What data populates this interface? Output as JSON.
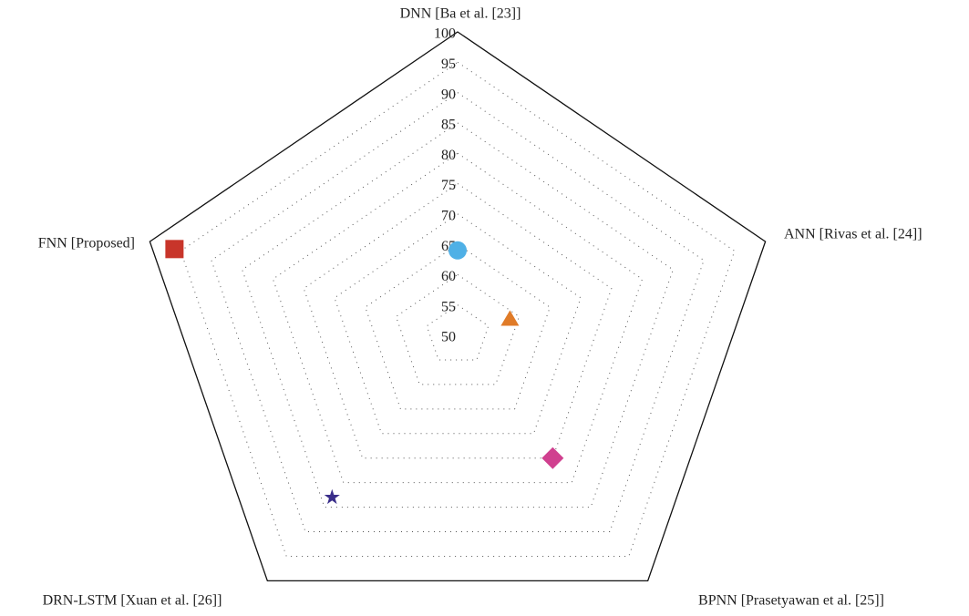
{
  "chart_data": {
    "type": "radar",
    "categories": [
      "DNN [Ba et al. [23]]",
      "ANN [Rivas et al. [24]]",
      "BPNN [Prasetyawan et al. [25]]",
      "DRN-LSTM [Xuan et al. [26]]",
      "FNN [Proposed]"
    ],
    "values": [
      64,
      58.5,
      75,
      83,
      96
    ],
    "colors": [
      "#4fb0e6",
      "#e07b28",
      "#d0408f",
      "#3a2e8a",
      "#c8352a"
    ],
    "markers": [
      "circle",
      "triangle",
      "diamond",
      "star",
      "square"
    ],
    "ylim": [
      50,
      100
    ],
    "yticks": [
      50,
      55,
      60,
      65,
      70,
      75,
      80,
      85,
      90,
      95,
      100
    ],
    "grid": true
  }
}
